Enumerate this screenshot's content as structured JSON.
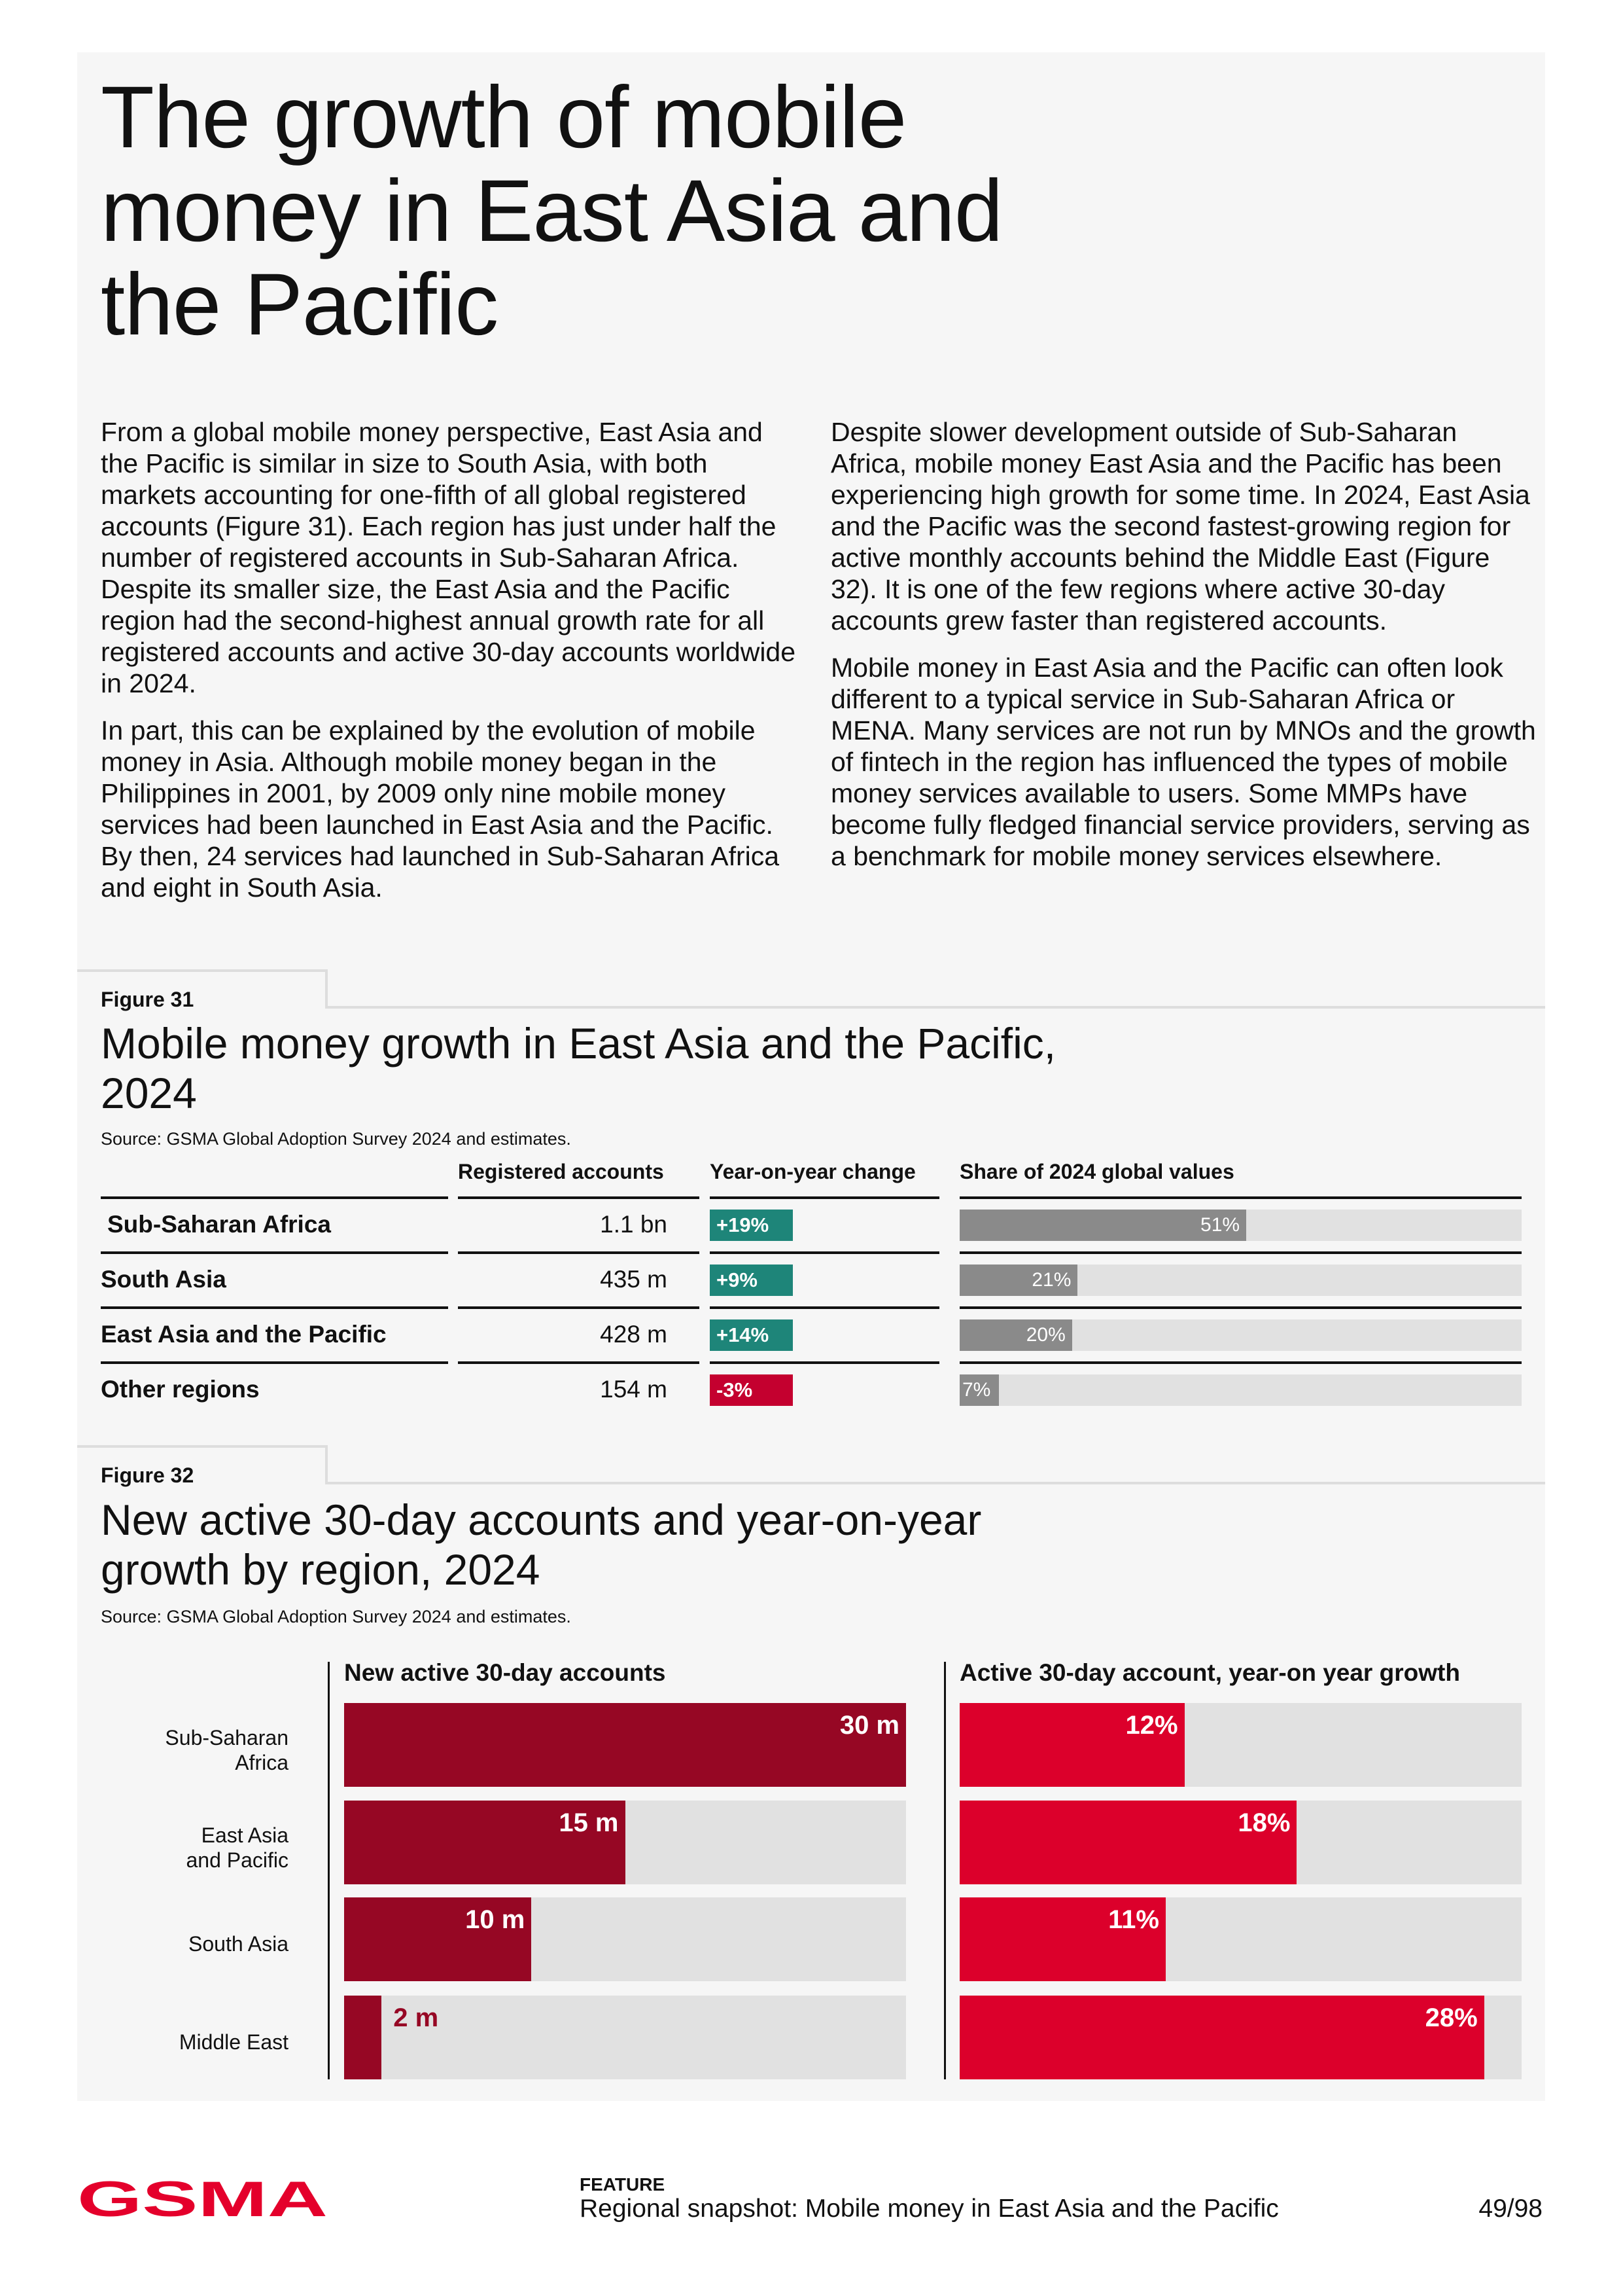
{
  "title": "The growth of mobile money in East Asia and the Pacific",
  "paragraphs_left": [
    "From a global mobile money perspective, East Asia and the Pacific is similar in size to South Asia, with both markets accounting for one-fifth of all global registered accounts (Figure 31). Each region has just under half the number of registered accounts in Sub-Saharan Africa. Despite its smaller size, the East Asia and the Pacific region had the second-highest annual growth rate for all registered accounts and active 30-day accounts worldwide in 2024.",
    "In part, this can be explained by the evolution of mobile money in Asia. Although mobile money began in the Philippines in 2001, by 2009 only nine mobile money services had been launched in East Asia and the Pacific. By then, 24 services had launched in Sub-Saharan Africa and eight in South Asia."
  ],
  "paragraphs_right": [
    "Despite slower development outside of Sub-Saharan Africa, mobile money East Asia and the Pacific has been experiencing high growth for some time. In 2024, East Asia and the Pacific was the second fastest-growing region for active monthly accounts behind the Middle East (Figure 32). It is one of the few regions where active 30-day accounts grew faster than registered accounts.",
    "Mobile money in East Asia and the Pacific can often look different to a typical service in Sub-Saharan Africa or MENA. Many services are not run by MNOs and the growth of fintech in the region has influenced the types of mobile money services available to users. Some MMPs have become fully fledged financial service providers, serving as a benchmark for mobile money services elsewhere."
  ],
  "chart_data": [
    {
      "type": "table",
      "figure": "Figure 31",
      "title": "Mobile money growth in East Asia and the Pacific, 2024",
      "source": "Source: GSMA Global Adoption Survey 2024 and estimates.",
      "columns": [
        "Registered accounts",
        "Year-on-year change",
        "Share of 2024 global values"
      ],
      "rows": [
        {
          "region": "Sub-Saharan Africa",
          "registered": "1.1 bn",
          "yoy": "+19%",
          "yoy_positive": true,
          "share": 51,
          "share_label": "51%"
        },
        {
          "region": "South Asia",
          "registered": "435 m",
          "yoy": "+9%",
          "yoy_positive": true,
          "share": 21,
          "share_label": "21%"
        },
        {
          "region": "East Asia and the Pacific",
          "registered": "428 m",
          "yoy": "+14%",
          "yoy_positive": true,
          "share": 20,
          "share_label": "20%"
        },
        {
          "region": "Other regions",
          "registered": "154 m",
          "yoy": "-3%",
          "yoy_positive": false,
          "share": 7,
          "share_label": "7%"
        }
      ],
      "colors": {
        "positive": "#1e8579",
        "negative": "#c4002f",
        "share": "#8a8a8a",
        "track": "#e1e1e1"
      }
    },
    {
      "type": "bar",
      "figure": "Figure 32",
      "title": "New active 30-day accounts and year-on-year growth by region, 2024",
      "source": "Source: GSMA Global Adoption Survey 2024 and estimates.",
      "categories": [
        "Sub-Saharan Africa",
        "East Asia and Pacific",
        "South Asia",
        "Middle East"
      ],
      "category_lines": [
        [
          "Sub-Saharan",
          "Africa"
        ],
        [
          "East Asia",
          "and Pacific"
        ],
        [
          "South Asia"
        ],
        [
          "Middle East"
        ]
      ],
      "series": [
        {
          "name": "New active 30-day accounts",
          "values": [
            30,
            15,
            10,
            2
          ],
          "labels": [
            "30 m",
            "15 m",
            "10 m",
            "2 m"
          ],
          "max": 30,
          "color": "#960724"
        },
        {
          "name": "Active 30-day account, year-on year growth",
          "values": [
            12,
            18,
            11,
            28
          ],
          "labels": [
            "12%",
            "18%",
            "11%",
            "28%"
          ],
          "max": 30,
          "color": "#dc002b"
        }
      ]
    }
  ],
  "footer": {
    "logo": "GSMA",
    "section": "FEATURE",
    "subtitle": "Regional snapshot: Mobile money in East Asia and the Pacific",
    "page": "49/98"
  }
}
